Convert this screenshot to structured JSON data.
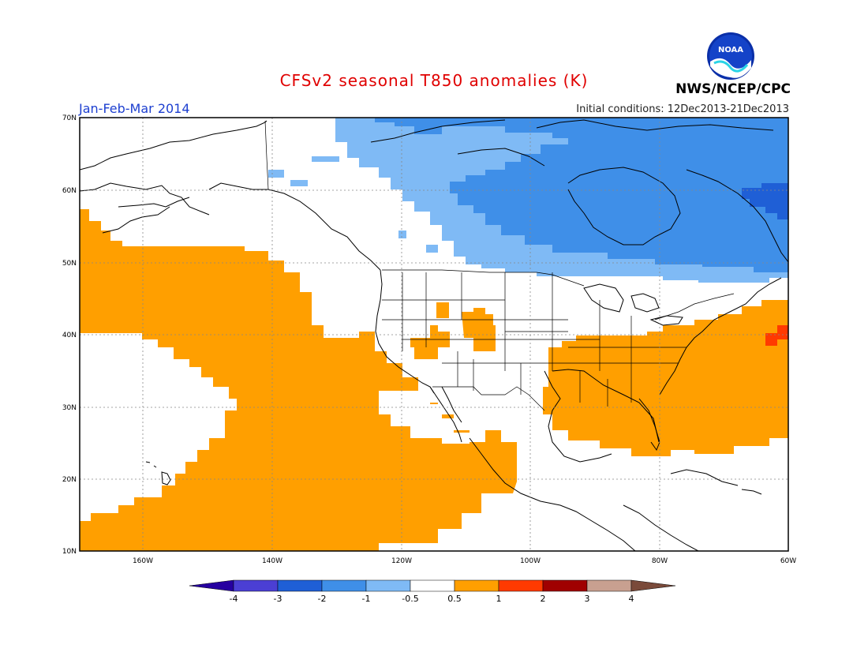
{
  "title": "CFSv2 seasonal T850 anomalies (K)",
  "period": "Jan-Feb-Mar 2014",
  "initial_conditions": "Initial conditions: 12Dec2013-21Dec2013",
  "agency": "NWS/NCEP/CPC",
  "logo_text": "NOAA",
  "colors": {
    "title": "#e00000",
    "period": "#1d3fd0",
    "grid": "#888888",
    "coast": "#000000"
  },
  "map": {
    "lat_labels": [
      "70N",
      "60N",
      "50N",
      "40N",
      "30N",
      "20N",
      "10N"
    ],
    "lon_labels": [
      "160W",
      "140W",
      "120W",
      "100W",
      "80W",
      "60W"
    ]
  },
  "colorbar": {
    "bins": [
      {
        "color": "#2600a0",
        "label": "-4"
      },
      {
        "color": "#4b3fd4",
        "label": "-3"
      },
      {
        "color": "#1f5fd6",
        "label": "-2"
      },
      {
        "color": "#3f8fe8",
        "label": "-1"
      },
      {
        "color": "#7fbaf5",
        "label": "-0.5"
      },
      {
        "color": "#ffffff",
        "label": "0.5"
      },
      {
        "color": "#ff9f00",
        "label": "1"
      },
      {
        "color": "#ff3a00",
        "label": "2"
      },
      {
        "color": "#a00000",
        "label": "3"
      },
      {
        "color": "#c8a090",
        "label": "4"
      },
      {
        "color": "#7a4a3a",
        "label": ""
      }
    ]
  }
}
